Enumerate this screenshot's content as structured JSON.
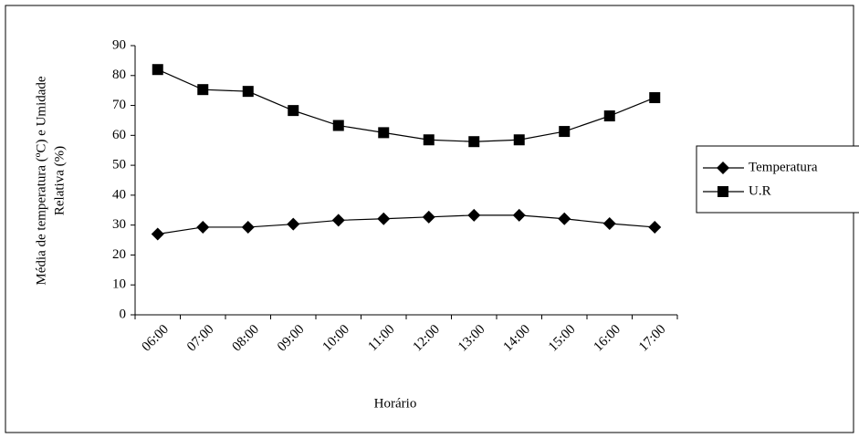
{
  "chart_data": {
    "type": "line",
    "ylabel": [
      "Média de temperatura (ºC) e Umidade",
      "Relativa (%)"
    ],
    "xlabel": "Horário",
    "categories": [
      "06:00",
      "07:00",
      "08:00",
      "09:00",
      "10:00",
      "11:00",
      "12:00",
      "13:00",
      "14:00",
      "15:00",
      "16:00",
      "17:00"
    ],
    "series": [
      {
        "name": "Temperatura",
        "color": "#000000",
        "marker": "diamond",
        "values": [
          27,
          29.3,
          29.3,
          30.3,
          31.6,
          32.1,
          32.7,
          33.3,
          33.3,
          32.1,
          30.5,
          29.3
        ]
      },
      {
        "name": "U.R",
        "color": "#000000",
        "marker": "square",
        "values": [
          82,
          75.3,
          74.7,
          68.3,
          63.3,
          60.9,
          58.5,
          57.9,
          58.5,
          61.3,
          66.5,
          72.6
        ]
      }
    ],
    "ylim": [
      0,
      90
    ],
    "yticks": [
      0,
      10,
      20,
      30,
      40,
      50,
      60,
      70,
      80,
      90
    ],
    "legend": "right"
  }
}
